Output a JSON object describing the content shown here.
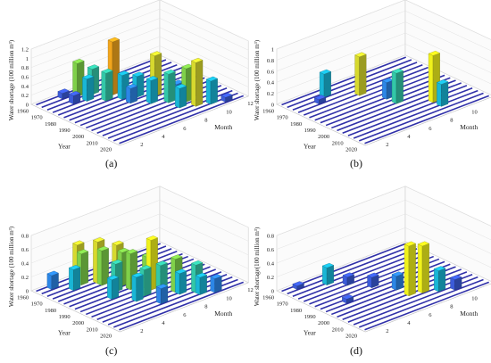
{
  "figure": {
    "panel_labels": [
      "(a)",
      "(b)",
      "(c)",
      "(d)"
    ]
  },
  "chart_data": [
    {
      "type": "bar3d",
      "panel": "(a)",
      "zlabel": "Water shortage (100 million m³)",
      "xlabel": "Year",
      "ylabel": "Month",
      "zticks": [
        "0",
        "0.2",
        "0.4",
        "0.6",
        "0.8",
        "1",
        "1.2"
      ],
      "zlim": [
        0,
        1.2
      ],
      "year_ticks": [
        "1960",
        "1970",
        "1980",
        "1990",
        "2000",
        "2010",
        "2020"
      ],
      "month_ticks": [
        "2",
        "4",
        "6",
        "8",
        "10",
        "12"
      ],
      "colormap": [
        "#2a2ec8",
        "#3b5bd9",
        "#2c86e6",
        "#19b6d6",
        "#33c7a8",
        "#7fd04a",
        "#d7d92e",
        "#f0f21c",
        "#f2a51c"
      ],
      "bars": [
        {
          "year": 1965,
          "month": 4,
          "value": 0.72
        },
        {
          "year": 1968,
          "month": 5,
          "value": 0.55
        },
        {
          "year": 1972,
          "month": 4,
          "value": 0.48
        },
        {
          "year": 1975,
          "month": 6,
          "value": 1.15
        },
        {
          "year": 1978,
          "month": 5,
          "value": 0.6
        },
        {
          "year": 1982,
          "month": 6,
          "value": 0.52
        },
        {
          "year": 1985,
          "month": 7,
          "value": 0.45
        },
        {
          "year": 1990,
          "month": 8,
          "value": 0.88
        },
        {
          "year": 1995,
          "month": 7,
          "value": 0.5
        },
        {
          "year": 2000,
          "month": 8,
          "value": 0.62
        },
        {
          "year": 2005,
          "month": 9,
          "value": 0.72
        },
        {
          "year": 2008,
          "month": 8,
          "value": 0.42
        },
        {
          "year": 2012,
          "month": 9,
          "value": 0.95
        },
        {
          "year": 2015,
          "month": 10,
          "value": 0.5
        },
        {
          "year": 1962,
          "month": 3,
          "value": 0.12
        },
        {
          "year": 1970,
          "month": 3,
          "value": 0.18
        },
        {
          "year": 1988,
          "month": 6,
          "value": 0.32
        },
        {
          "year": 1998,
          "month": 9,
          "value": 0.28
        },
        {
          "year": 2002,
          "month": 10,
          "value": 0.22
        },
        {
          "year": 2018,
          "month": 11,
          "value": 0.1
        }
      ]
    },
    {
      "type": "bar3d",
      "panel": "(b)",
      "zlabel": "Water shortage (100 million m³)",
      "xlabel": "Year",
      "ylabel": "Month",
      "zticks": [
        "0",
        "0.2",
        "0.4",
        "0.6",
        "0.8",
        "1"
      ],
      "zlim": [
        0,
        1.0
      ],
      "year_ticks": [
        "1960",
        "1970",
        "1980",
        "1990",
        "2000",
        "2010",
        "2020"
      ],
      "month_ticks": [
        "2",
        "4",
        "6",
        "8",
        "10",
        "12"
      ],
      "colormap": [
        "#2a2ec8",
        "#3b5bd9",
        "#2c86e6",
        "#19b6d6",
        "#33c7a8",
        "#7fd04a",
        "#d7d92e",
        "#f0f21c",
        "#f2a51c"
      ],
      "bars": [
        {
          "year": 1966,
          "month": 4,
          "value": 0.42
        },
        {
          "year": 1976,
          "month": 6,
          "value": 0.7
        },
        {
          "year": 1988,
          "month": 7,
          "value": 0.3
        },
        {
          "year": 1995,
          "month": 7,
          "value": 0.55
        },
        {
          "year": 2006,
          "month": 9,
          "value": 0.85
        },
        {
          "year": 2012,
          "month": 9,
          "value": 0.4
        },
        {
          "year": 1970,
          "month": 3,
          "value": 0.08
        },
        {
          "year": 2000,
          "month": 10,
          "value": 0.1
        }
      ]
    },
    {
      "type": "bar3d",
      "panel": "(c)",
      "zlabel": "Water shortage (100 million m³)",
      "xlabel": "Year",
      "ylabel": "Month",
      "zticks": [
        "0",
        "0.2",
        "0.4",
        "0.6",
        "0.8"
      ],
      "zlim": [
        0,
        0.8
      ],
      "year_ticks": [
        "1960",
        "1970",
        "1980",
        "1990",
        "2000",
        "2010",
        "2020"
      ],
      "month_ticks": [
        "2",
        "4",
        "6",
        "8",
        "10",
        "12"
      ],
      "colormap": [
        "#2a2ec8",
        "#3b5bd9",
        "#2c86e6",
        "#19b6d6",
        "#33c7a8",
        "#7fd04a",
        "#d7d92e",
        "#f0f21c",
        "#f2a51c"
      ],
      "bars": [
        {
          "year": 1962,
          "month": 2,
          "value": 0.2
        },
        {
          "year": 1965,
          "month": 4,
          "value": 0.55
        },
        {
          "year": 1968,
          "month": 4,
          "value": 0.45
        },
        {
          "year": 1972,
          "month": 5,
          "value": 0.6
        },
        {
          "year": 1975,
          "month": 5,
          "value": 0.5
        },
        {
          "year": 1978,
          "month": 6,
          "value": 0.55
        },
        {
          "year": 1982,
          "month": 6,
          "value": 0.48
        },
        {
          "year": 1985,
          "month": 5,
          "value": 0.4
        },
        {
          "year": 1988,
          "month": 6,
          "value": 0.52
        },
        {
          "year": 1992,
          "month": 7,
          "value": 0.45
        },
        {
          "year": 1995,
          "month": 7,
          "value": 0.72
        },
        {
          "year": 1998,
          "month": 6,
          "value": 0.38
        },
        {
          "year": 2002,
          "month": 7,
          "value": 0.42
        },
        {
          "year": 2005,
          "month": 8,
          "value": 0.48
        },
        {
          "year": 2008,
          "month": 8,
          "value": 0.3
        },
        {
          "year": 2012,
          "month": 9,
          "value": 0.4
        },
        {
          "year": 2015,
          "month": 9,
          "value": 0.25
        },
        {
          "year": 2018,
          "month": 10,
          "value": 0.2
        },
        {
          "year": 1970,
          "month": 3,
          "value": 0.3
        },
        {
          "year": 1990,
          "month": 4,
          "value": 0.28
        },
        {
          "year": 2000,
          "month": 5,
          "value": 0.35
        },
        {
          "year": 2010,
          "month": 6,
          "value": 0.22
        }
      ]
    },
    {
      "type": "bar3d",
      "panel": "(d)",
      "zlabel": "Water shortage(100 million m³)",
      "xlabel": "Year",
      "ylabel": "Month",
      "zticks": [
        "0",
        "0.2",
        "0.4",
        "0.6",
        "0.8"
      ],
      "zlim": [
        0,
        0.8
      ],
      "year_ticks": [
        "1960",
        "1970",
        "1980",
        "1990",
        "2000",
        "2010",
        "2020"
      ],
      "month_ticks": [
        "2",
        "4",
        "6",
        "8",
        "10",
        "12"
      ],
      "colormap": [
        "#2a2ec8",
        "#3b5bd9",
        "#2c86e6",
        "#19b6d6",
        "#33c7a8",
        "#7fd04a",
        "#d7d92e",
        "#f0f21c",
        "#f2a51c"
      ],
      "bars": [
        {
          "year": 1968,
          "month": 4,
          "value": 0.25
        },
        {
          "year": 1975,
          "month": 5,
          "value": 0.12
        },
        {
          "year": 1985,
          "month": 6,
          "value": 0.15
        },
        {
          "year": 1995,
          "month": 7,
          "value": 0.2
        },
        {
          "year": 2004,
          "month": 7,
          "value": 0.72
        },
        {
          "year": 2006,
          "month": 8,
          "value": 0.68
        },
        {
          "year": 2010,
          "month": 9,
          "value": 0.3
        },
        {
          "year": 2014,
          "month": 10,
          "value": 0.15
        },
        {
          "year": 1962,
          "month": 2,
          "value": 0.05
        },
        {
          "year": 1990,
          "month": 3,
          "value": 0.06
        }
      ]
    }
  ]
}
